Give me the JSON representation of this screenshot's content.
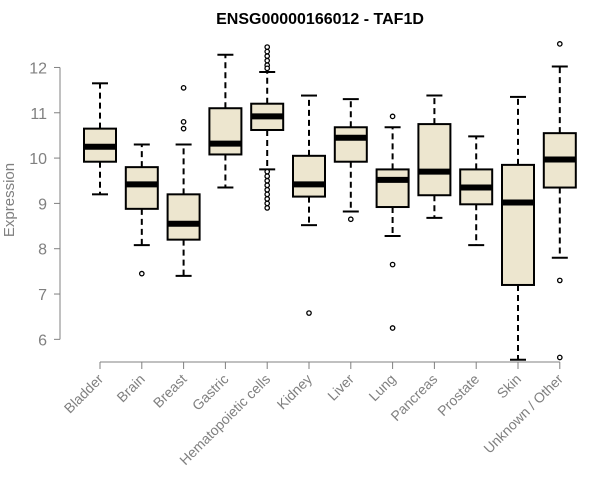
{
  "chart_data": {
    "type": "boxplot",
    "title": "ENSG00000166012 - TAF1D",
    "ylabel": "Expression",
    "xlabel": "",
    "ylim": [
      5.5,
      12.65
    ],
    "yticks": [
      6,
      7,
      8,
      9,
      10,
      11,
      12
    ],
    "box_fill": "#ede6cf",
    "box_stroke": "#000000",
    "axis_color": "#808080",
    "categories": [
      "Bladder",
      "Brain",
      "Breast",
      "Gastric",
      "Hematopoietic cells",
      "Kidney",
      "Liver",
      "Lung",
      "Pancreas",
      "Prostate",
      "Skin",
      "Unknown / Other"
    ],
    "boxes": [
      {
        "whisker_low": 9.2,
        "q1": 9.92,
        "median": 10.25,
        "q3": 10.65,
        "whisker_high": 11.65,
        "outliers": []
      },
      {
        "whisker_low": 8.08,
        "q1": 8.88,
        "median": 9.42,
        "q3": 9.8,
        "whisker_high": 10.3,
        "outliers": [
          7.45
        ]
      },
      {
        "whisker_low": 7.4,
        "q1": 8.2,
        "median": 8.55,
        "q3": 9.2,
        "whisker_high": 10.3,
        "outliers": [
          10.65,
          10.8,
          11.55
        ]
      },
      {
        "whisker_low": 9.35,
        "q1": 10.08,
        "median": 10.32,
        "q3": 11.1,
        "whisker_high": 12.28,
        "outliers": []
      },
      {
        "whisker_low": 9.75,
        "q1": 10.62,
        "median": 10.92,
        "q3": 11.2,
        "whisker_high": 11.9,
        "outliers": [
          12.45,
          12.35,
          12.25,
          12.15,
          12.05,
          11.98,
          9.7,
          9.6,
          9.5,
          9.4,
          9.3,
          9.2,
          9.1,
          9.0,
          8.9
        ]
      },
      {
        "whisker_low": 8.52,
        "q1": 9.15,
        "median": 9.42,
        "q3": 10.05,
        "whisker_high": 11.38,
        "outliers": [
          6.58
        ]
      },
      {
        "whisker_low": 8.82,
        "q1": 9.92,
        "median": 10.45,
        "q3": 10.68,
        "whisker_high": 11.3,
        "outliers": [
          8.65
        ]
      },
      {
        "whisker_low": 8.28,
        "q1": 8.92,
        "median": 9.52,
        "q3": 9.75,
        "whisker_high": 10.68,
        "outliers": [
          10.92,
          7.65,
          6.25
        ]
      },
      {
        "whisker_low": 8.68,
        "q1": 9.18,
        "median": 9.7,
        "q3": 10.75,
        "whisker_high": 11.38,
        "outliers": []
      },
      {
        "whisker_low": 8.08,
        "q1": 8.98,
        "median": 9.35,
        "q3": 9.75,
        "whisker_high": 10.48,
        "outliers": []
      },
      {
        "whisker_low": 5.55,
        "q1": 7.2,
        "median": 9.02,
        "q3": 9.85,
        "whisker_high": 11.35,
        "outliers": []
      },
      {
        "whisker_low": 7.8,
        "q1": 9.35,
        "median": 9.97,
        "q3": 10.55,
        "whisker_high": 12.02,
        "outliers": [
          12.52,
          7.3,
          5.6
        ]
      }
    ]
  }
}
